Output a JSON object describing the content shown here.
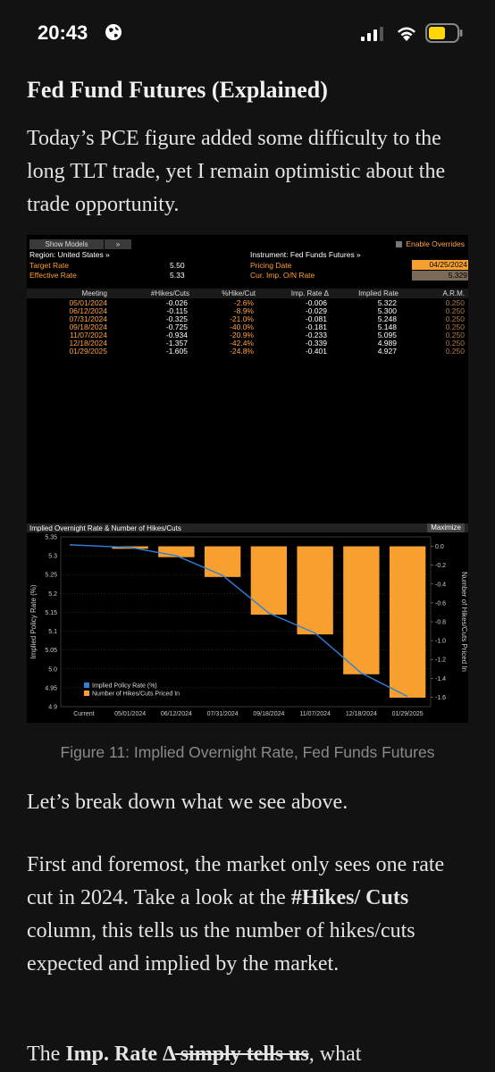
{
  "status_bar": {
    "time": "20:43"
  },
  "article": {
    "title": "Fed Fund Futures (Explained)",
    "intro": "Today’s PCE figure added some difficulty to the long TLT trade, yet I remain optimistic about the trade opportunity.",
    "caption": "Figure 11: Implied Overnight Rate, Fed Funds Futures",
    "p2": "Let’s break down what we see above.",
    "p3_a": "First and foremost, the market only sees one rate cut in 2024. Take a look at the ",
    "p3_bold": "#Hikes/ Cuts",
    "p3_b": " column, this tells us the number of hikes/cuts expected and implied by the market.",
    "p4_a": "The ",
    "p4_bold": "Imp. Rate Δ",
    "p4_strike": " simply tells us",
    "p4_b": ", what"
  },
  "terminal": {
    "show_models": "Show Models",
    "arrows": "»",
    "enable_overrides": "Enable Overrides",
    "region": "Region: United States »",
    "target_rate_label": "Target Rate",
    "target_rate": "5.50",
    "effective_rate_label": "Effective Rate",
    "effective_rate": "5.33",
    "instrument": "Instrument: Fed Funds Futures »",
    "pricing_date_label": "Pricing Date",
    "pricing_date": "04/25/2024",
    "cur_imp_label": "Cur. Imp. O/N Rate",
    "cur_imp": "5.329",
    "headers": {
      "meeting": "Meeting",
      "hikes": "#Hikes/Cuts",
      "pct": "%Hike/Cut",
      "imp": "Imp. Rate Δ",
      "implied": "Implied Rate",
      "arm": "A.R.M."
    },
    "rows": [
      {
        "meeting": "05/01/2024",
        "hikes": "-0.026",
        "pct": "-2.6%",
        "imp": "-0.006",
        "implied": "5.322",
        "arm": "0.250"
      },
      {
        "meeting": "06/12/2024",
        "hikes": "-0.115",
        "pct": "-8.9%",
        "imp": "-0.029",
        "implied": "5.300",
        "arm": "0.250"
      },
      {
        "meeting": "07/31/2024",
        "hikes": "-0.325",
        "pct": "-21.0%",
        "imp": "-0.081",
        "implied": "5.248",
        "arm": "0.250"
      },
      {
        "meeting": "09/18/2024",
        "hikes": "-0.725",
        "pct": "-40.0%",
        "imp": "-0.181",
        "implied": "5.148",
        "arm": "0.250"
      },
      {
        "meeting": "11/07/2024",
        "hikes": "-0.934",
        "pct": "-20.9%",
        "imp": "-0.233",
        "implied": "5.095",
        "arm": "0.250"
      },
      {
        "meeting": "12/18/2024",
        "hikes": "-1.357",
        "pct": "-42.4%",
        "imp": "-0.339",
        "implied": "4.989",
        "arm": "0.250"
      },
      {
        "meeting": "01/29/2025",
        "hikes": "-1.605",
        "pct": "-24.8%",
        "imp": "-0.401",
        "implied": "4.927",
        "arm": "0.250"
      }
    ],
    "chart_title": "Implied Overnight Rate & Number of Hikes/Cuts",
    "maximize": "Maximize"
  },
  "chart_data": {
    "type": "bar",
    "categories": [
      "Current",
      "05/01/2024",
      "06/12/2024",
      "07/31/2024",
      "09/18/2024",
      "11/07/2024",
      "12/18/2024",
      "01/29/2025"
    ],
    "series": [
      {
        "name": "Implied Policy Rate (%)",
        "type": "line",
        "axis": "left",
        "color": "#2f7fd8",
        "values": [
          5.329,
          5.322,
          5.3,
          5.248,
          5.148,
          5.095,
          4.989,
          4.927
        ]
      },
      {
        "name": "Number of Hikes/Cuts Priced In",
        "type": "bar",
        "axis": "right",
        "color": "#f7a030",
        "values": [
          null,
          -0.026,
          -0.115,
          -0.325,
          -0.725,
          -0.934,
          -1.357,
          -1.605
        ]
      }
    ],
    "ylabel": "Implied Policy Rate (%)",
    "y2label": "Number of Hikes/Cuts Priced In",
    "ylim": [
      4.9,
      5.35
    ],
    "y2lim": [
      -1.7,
      0.1
    ],
    "yticks": [
      "5.35",
      "5.3",
      "5.25",
      "5.2",
      "5.15",
      "5.1",
      "5.05",
      "5.0",
      "4.95",
      "4.9"
    ],
    "y2ticks": [
      "0.0",
      "-0.2",
      "-0.4",
      "-0.6",
      "-0.8",
      "-1.0",
      "-1.2",
      "-1.4",
      "-1.6"
    ],
    "legend": "bottom-left",
    "grid": true
  }
}
